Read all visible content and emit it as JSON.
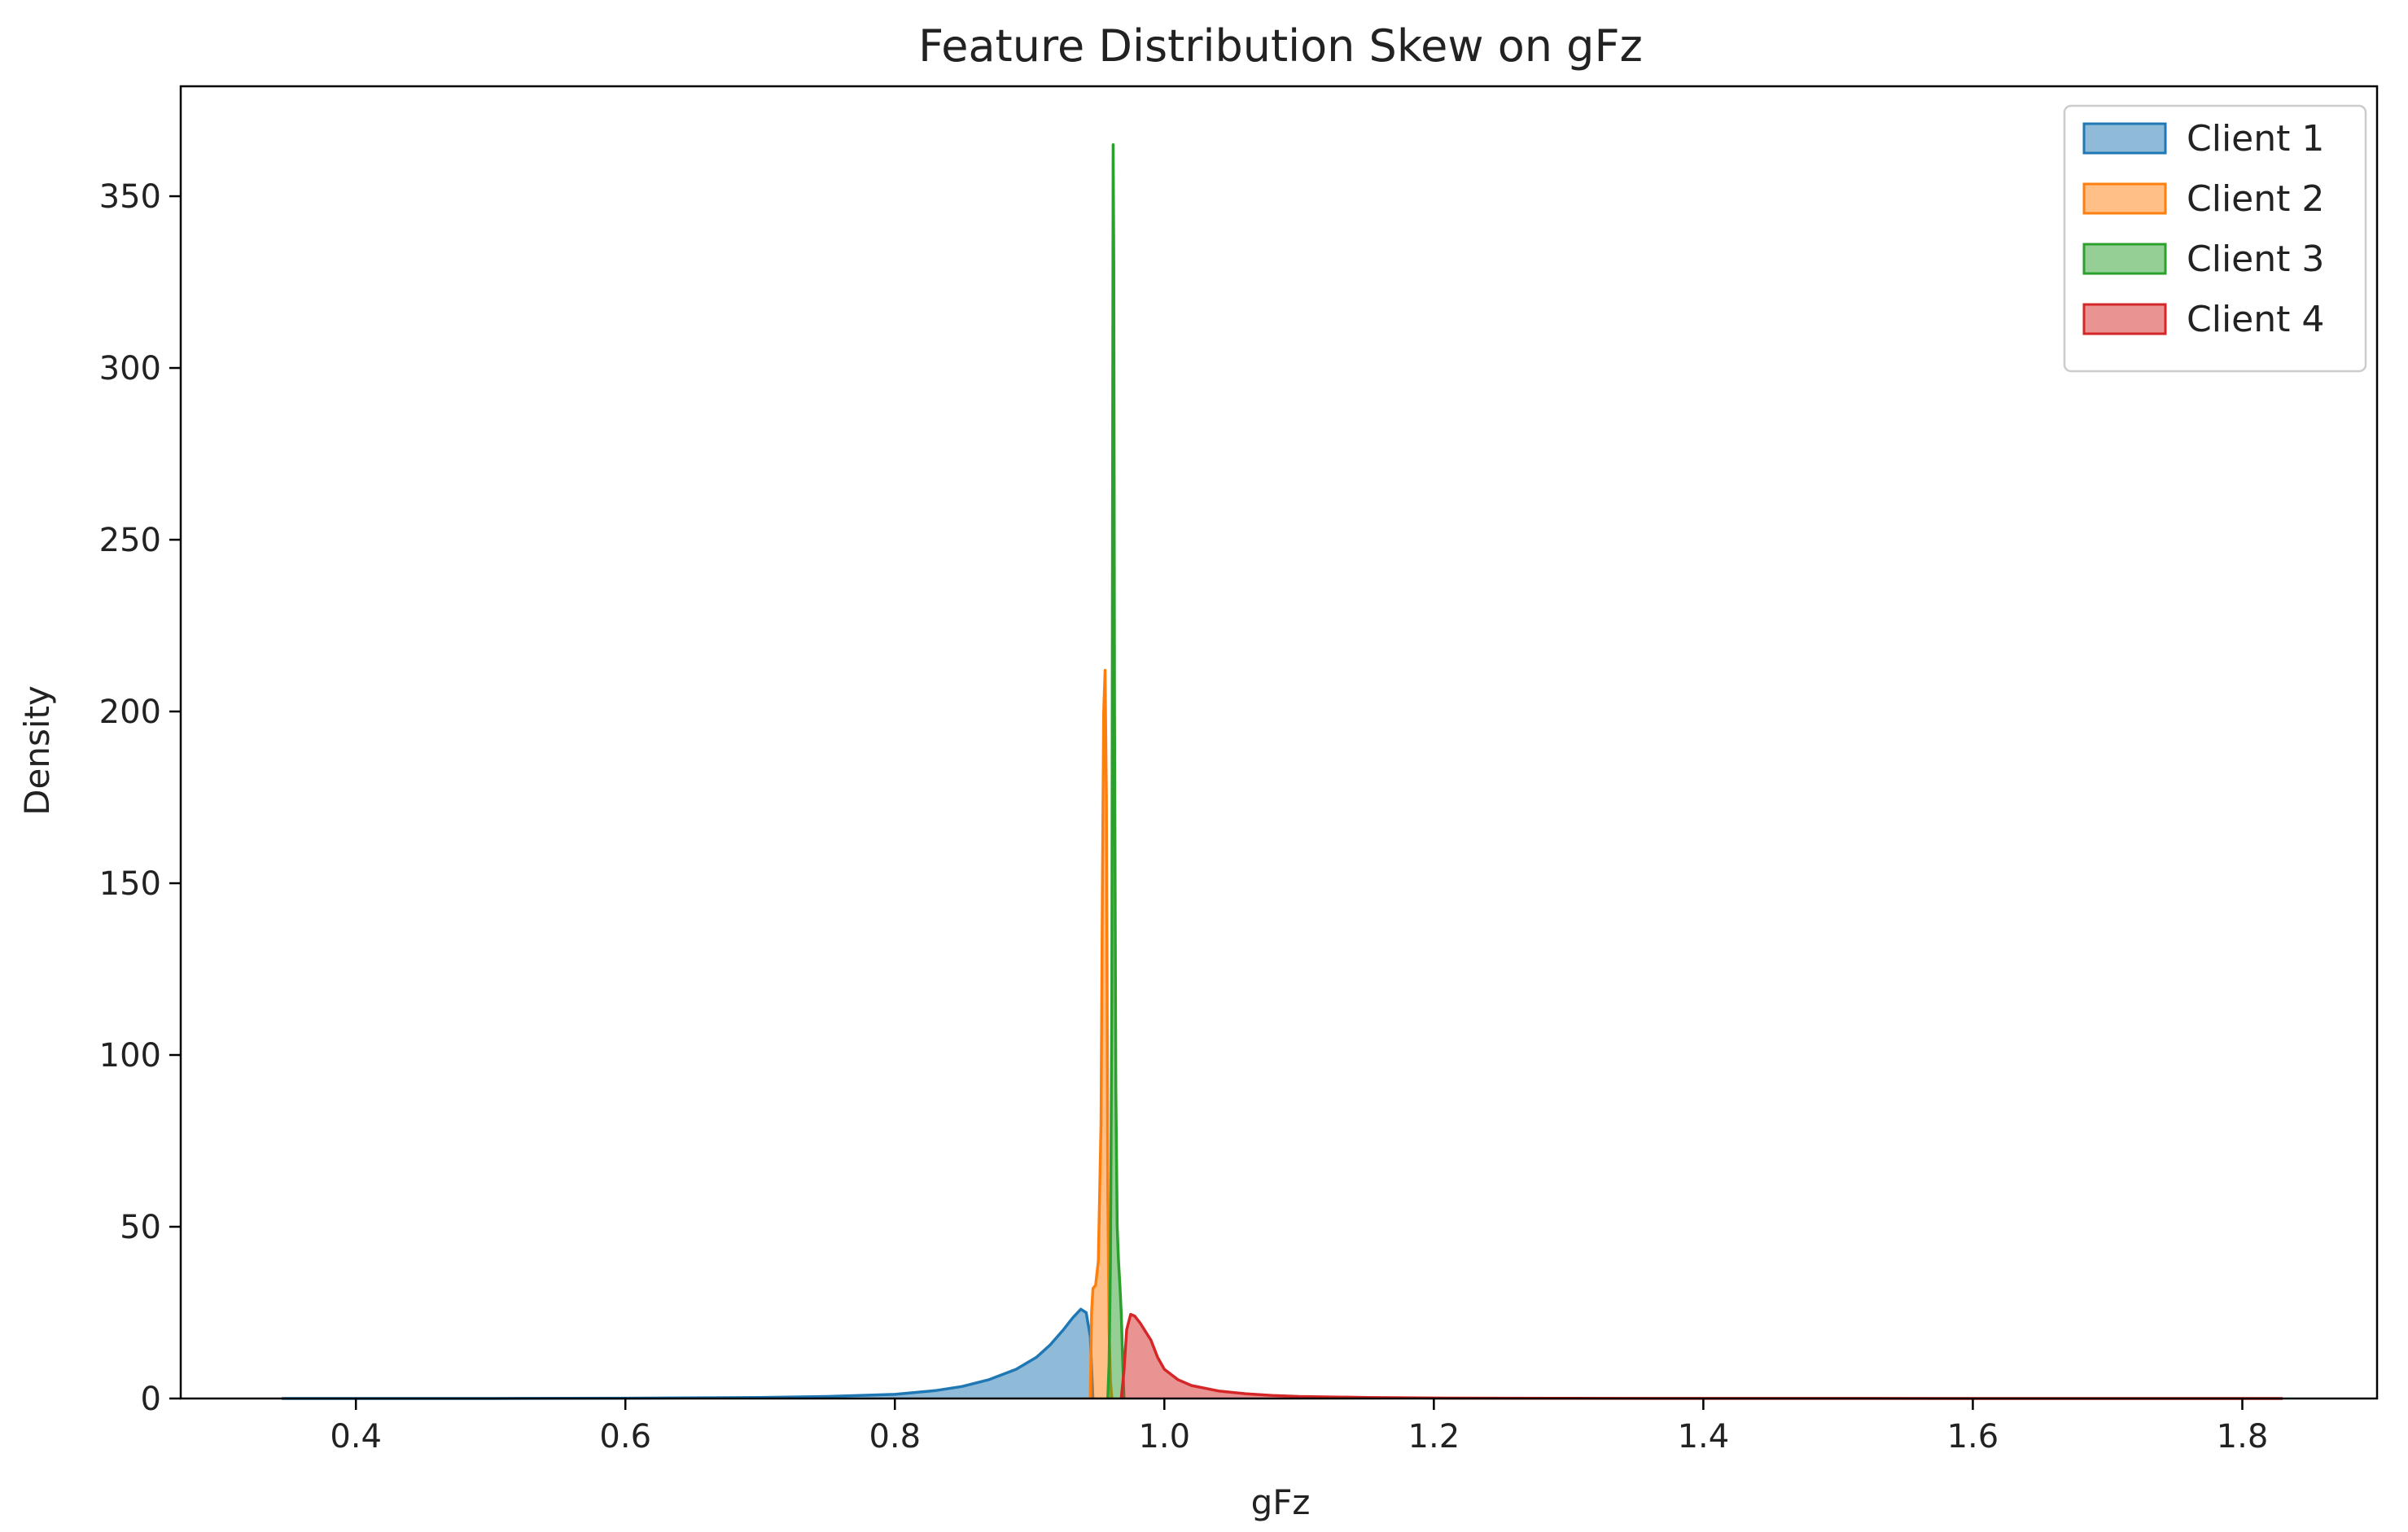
{
  "chart_data": {
    "type": "area",
    "title": "Feature Distribution Skew on gFz",
    "xlabel": "gFz",
    "ylabel": "Density",
    "xlim": [
      0.27,
      1.9
    ],
    "ylim": [
      0,
      382
    ],
    "xticks": [
      0.4,
      0.6,
      0.8,
      1.0,
      1.2,
      1.4,
      1.6,
      1.8
    ],
    "xtick_labels": [
      "0.4",
      "0.6",
      "0.8",
      "1.0",
      "1.2",
      "1.4",
      "1.6",
      "1.8"
    ],
    "yticks": [
      0,
      50,
      100,
      150,
      200,
      250,
      300,
      350
    ],
    "ytick_labels": [
      "0",
      "50",
      "100",
      "150",
      "200",
      "250",
      "300",
      "350"
    ],
    "grid": false,
    "legend_position": "top-right",
    "series": [
      {
        "name": "Client 1",
        "color": "#1f77b4",
        "x": [
          0.345,
          0.5,
          0.6,
          0.7,
          0.75,
          0.8,
          0.83,
          0.85,
          0.87,
          0.89,
          0.905,
          0.915,
          0.925,
          0.932,
          0.938,
          0.942,
          0.945,
          0.947
        ],
        "y": [
          0,
          0,
          0.1,
          0.3,
          0.6,
          1.2,
          2.3,
          3.5,
          5.5,
          8.5,
          12,
          15.5,
          20,
          23.5,
          26,
          25,
          18,
          0
        ]
      },
      {
        "name": "Client 2",
        "color": "#ff7f0e",
        "x": [
          0.945,
          0.946,
          0.947,
          0.949,
          0.951,
          0.953,
          0.954,
          0.955,
          0.956,
          0.957,
          0.9575,
          0.958,
          0.959,
          0.96,
          0.961
        ],
        "y": [
          0,
          25,
          32,
          33,
          40,
          80,
          150,
          200,
          212,
          175,
          120,
          60,
          20,
          5,
          0
        ]
      },
      {
        "name": "Client 3",
        "color": "#2ca02c",
        "x": [
          0.958,
          0.959,
          0.96,
          0.961,
          0.9615,
          0.962,
          0.9625,
          0.963,
          0.964,
          0.965,
          0.966,
          0.967,
          0.968,
          0.969,
          0.97
        ],
        "y": [
          0,
          10,
          40,
          120,
          250,
          365,
          330,
          200,
          90,
          50,
          40,
          33,
          25,
          12,
          0
        ]
      },
      {
        "name": "Client 4",
        "color": "#d62728",
        "x": [
          0.968,
          0.97,
          0.972,
          0.975,
          0.978,
          0.982,
          0.986,
          0.99,
          0.995,
          1.0,
          1.01,
          1.02,
          1.04,
          1.06,
          1.08,
          1.1,
          1.15,
          1.2,
          1.3,
          1.5,
          1.7,
          1.83
        ],
        "y": [
          0,
          8,
          20,
          24.5,
          24,
          22,
          19.5,
          17,
          12,
          8.5,
          5.5,
          3.8,
          2.2,
          1.4,
          0.9,
          0.6,
          0.3,
          0.15,
          0.05,
          0.02,
          0.01,
          0
        ]
      }
    ]
  }
}
